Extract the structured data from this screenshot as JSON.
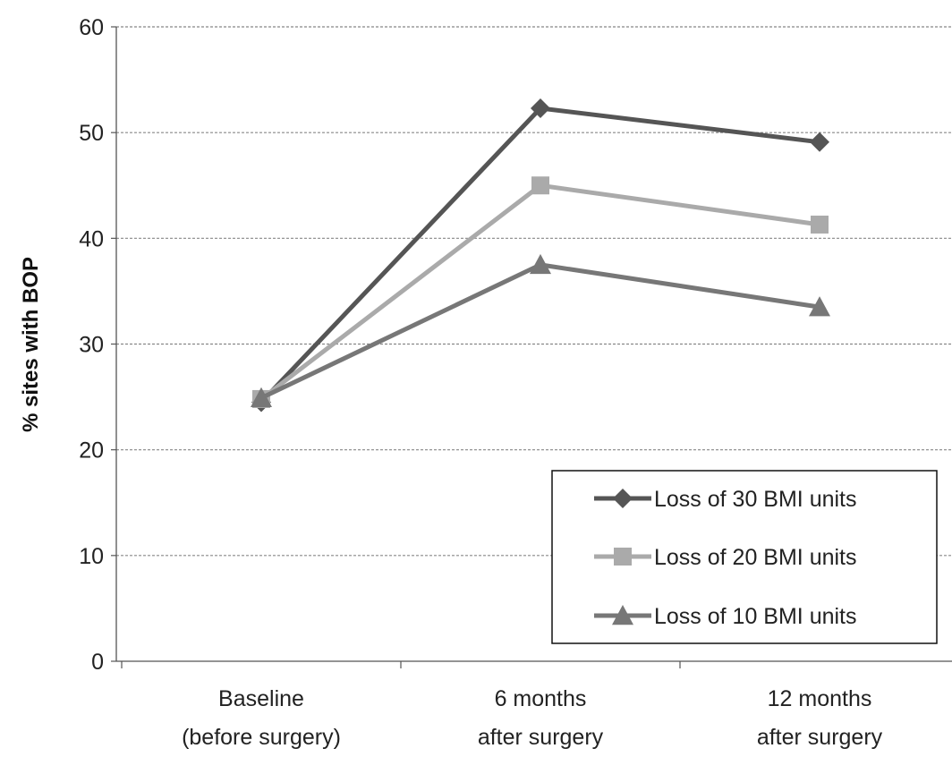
{
  "chart_data": {
    "type": "line",
    "title": "",
    "xlabel": "",
    "ylabel": "% sites with BOP",
    "ylim": [
      0,
      60
    ],
    "yticks": [
      0,
      10,
      20,
      30,
      40,
      50,
      60
    ],
    "grid": "horizontal-dashed",
    "legend_position": "bottom-right",
    "categories": [
      {
        "line1": "Baseline",
        "line2": "(before surgery)"
      },
      {
        "line1": "6 months",
        "line2": "after surgery"
      },
      {
        "line1": "12 months",
        "line2": "after surgery"
      }
    ],
    "series": [
      {
        "name": "Loss of 30 BMI units",
        "values": [
          24.5,
          52.3,
          49.1
        ],
        "color": "#555555",
        "marker": "diamond"
      },
      {
        "name": "Loss of 20 BMI units",
        "values": [
          24.8,
          45.0,
          41.3
        ],
        "color": "#aaaaaa",
        "marker": "square"
      },
      {
        "name": "Loss of 10 BMI units",
        "values": [
          24.9,
          37.5,
          33.5
        ],
        "color": "#777777",
        "marker": "triangle"
      }
    ]
  }
}
